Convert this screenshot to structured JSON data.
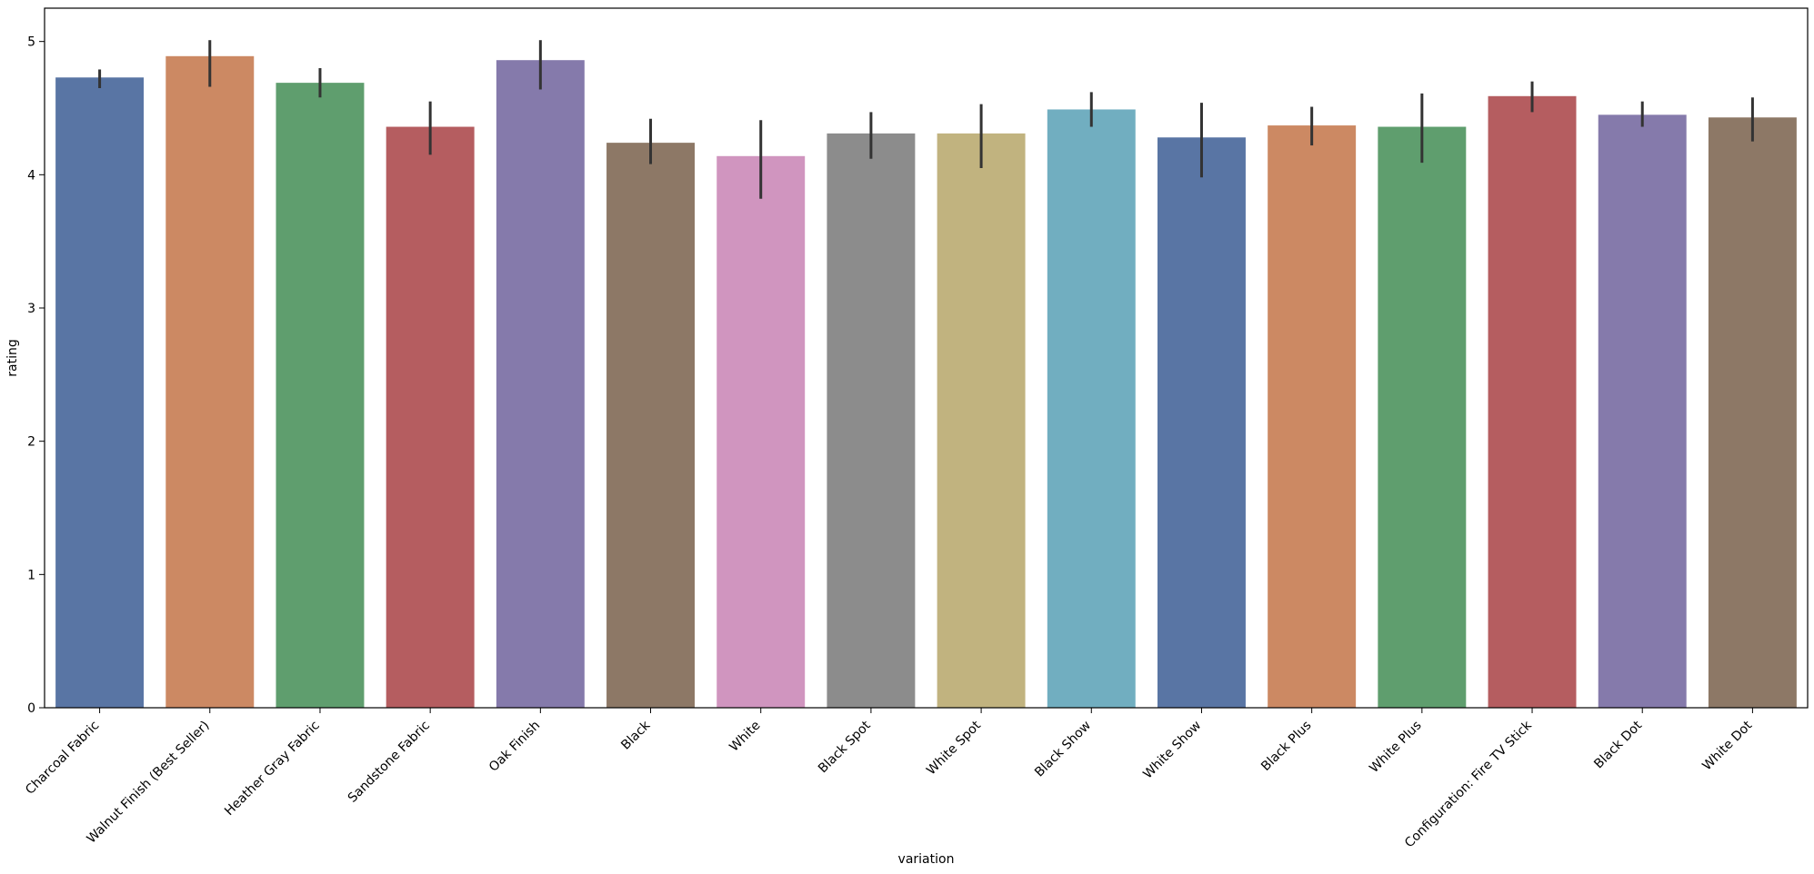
{
  "chart_data": {
    "type": "bar",
    "title": "",
    "xlabel": "variation",
    "ylabel": "rating",
    "ylim": [
      0,
      5.25
    ],
    "yticks": [
      0,
      1,
      2,
      3,
      4,
      5
    ],
    "grid": false,
    "legend": "none",
    "categories": [
      "Charcoal Fabric",
      "Walnut Finish (Best Seller)",
      "Heather Gray Fabric",
      "Sandstone Fabric",
      "Oak Finish",
      "Black",
      "White",
      "Black  Spot",
      "White  Spot",
      "Black  Show",
      "White  Show",
      "Black  Plus",
      "White  Plus",
      "Configuration: Fire TV Stick",
      "Black  Dot",
      "White  Dot"
    ],
    "values": [
      4.73,
      4.89,
      4.69,
      4.36,
      4.86,
      4.24,
      4.14,
      4.31,
      4.31,
      4.49,
      4.28,
      4.37,
      4.36,
      4.59,
      4.45,
      4.43
    ],
    "error_low": [
      4.65,
      4.66,
      4.58,
      4.15,
      4.64,
      4.08,
      3.82,
      4.12,
      4.05,
      4.36,
      3.98,
      4.22,
      4.09,
      4.47,
      4.36,
      4.25
    ],
    "error_high": [
      4.79,
      5.01,
      4.8,
      4.55,
      5.01,
      4.42,
      4.41,
      4.47,
      4.53,
      4.62,
      4.54,
      4.51,
      4.61,
      4.7,
      4.55,
      4.58
    ],
    "colors": [
      "#5975a4",
      "#cc8963",
      "#5f9e6e",
      "#b55d60",
      "#857aab",
      "#8d7866",
      "#d095bf",
      "#8c8c8c",
      "#c1b37f",
      "#71aec0",
      "#5975a4",
      "#cc8963",
      "#5f9e6e",
      "#b55d60",
      "#857aab",
      "#8d7866"
    ],
    "error_color": "#333333"
  }
}
